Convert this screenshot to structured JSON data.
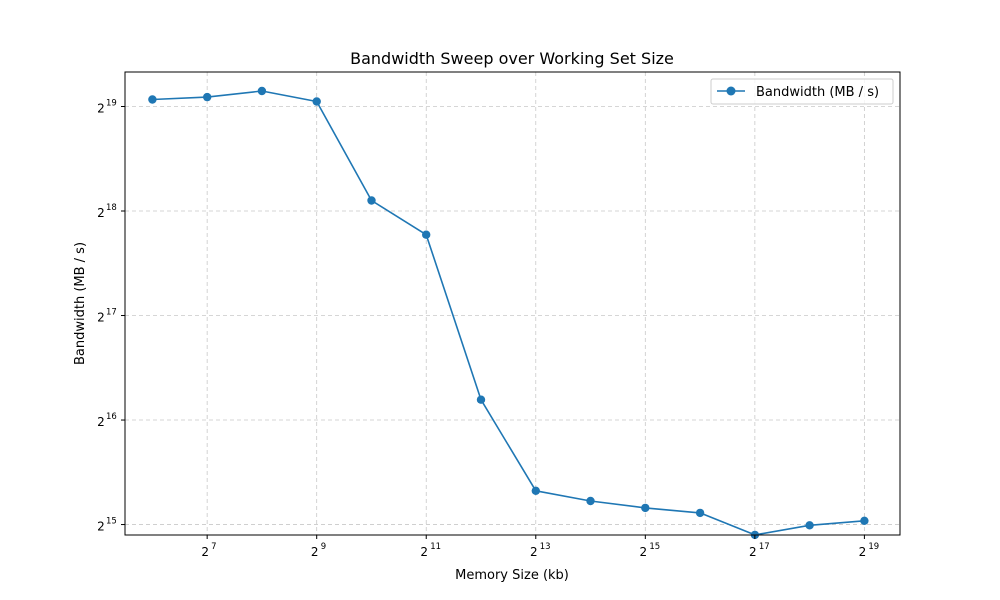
{
  "chart_data": {
    "type": "line",
    "title": "Bandwidth Sweep over Working Set Size",
    "xlabel": "Memory Size (kb)",
    "ylabel": "Bandwidth (MB / s)",
    "x_scale": "log2",
    "y_scale": "log2",
    "x_log2_range": [
      5.5,
      19.65
    ],
    "y_log2_range": [
      14.9,
      19.33
    ],
    "x_tick_labels": [
      {
        "base": "2",
        "exp": "7",
        "log2": 7
      },
      {
        "base": "2",
        "exp": "9",
        "log2": 9
      },
      {
        "base": "2",
        "exp": "11",
        "log2": 11
      },
      {
        "base": "2",
        "exp": "13",
        "log2": 13
      },
      {
        "base": "2",
        "exp": "15",
        "log2": 15
      },
      {
        "base": "2",
        "exp": "17",
        "log2": 17
      },
      {
        "base": "2",
        "exp": "19",
        "log2": 19
      }
    ],
    "y_tick_labels": [
      {
        "base": "2",
        "exp": "15",
        "log2": 15
      },
      {
        "base": "2",
        "exp": "16",
        "log2": 16
      },
      {
        "base": "2",
        "exp": "17",
        "log2": 17
      },
      {
        "base": "2",
        "exp": "18",
        "log2": 18
      },
      {
        "base": "2",
        "exp": "19",
        "log2": 19
      }
    ],
    "grid": true,
    "legend_position": "top-right",
    "color": "#1f77b4",
    "series": [
      {
        "name": "Bandwidth (MB / s)",
        "x": [
          64,
          128,
          256,
          512,
          1024,
          2048,
          4096,
          8192,
          16384,
          32768,
          65536,
          131072,
          262144,
          524288
        ],
        "y": [
          549000,
          558000,
          581000,
          542000,
          281000,
          224000,
          75000,
          41000,
          38300,
          36600,
          35400,
          30600,
          32600,
          33600
        ]
      }
    ]
  }
}
